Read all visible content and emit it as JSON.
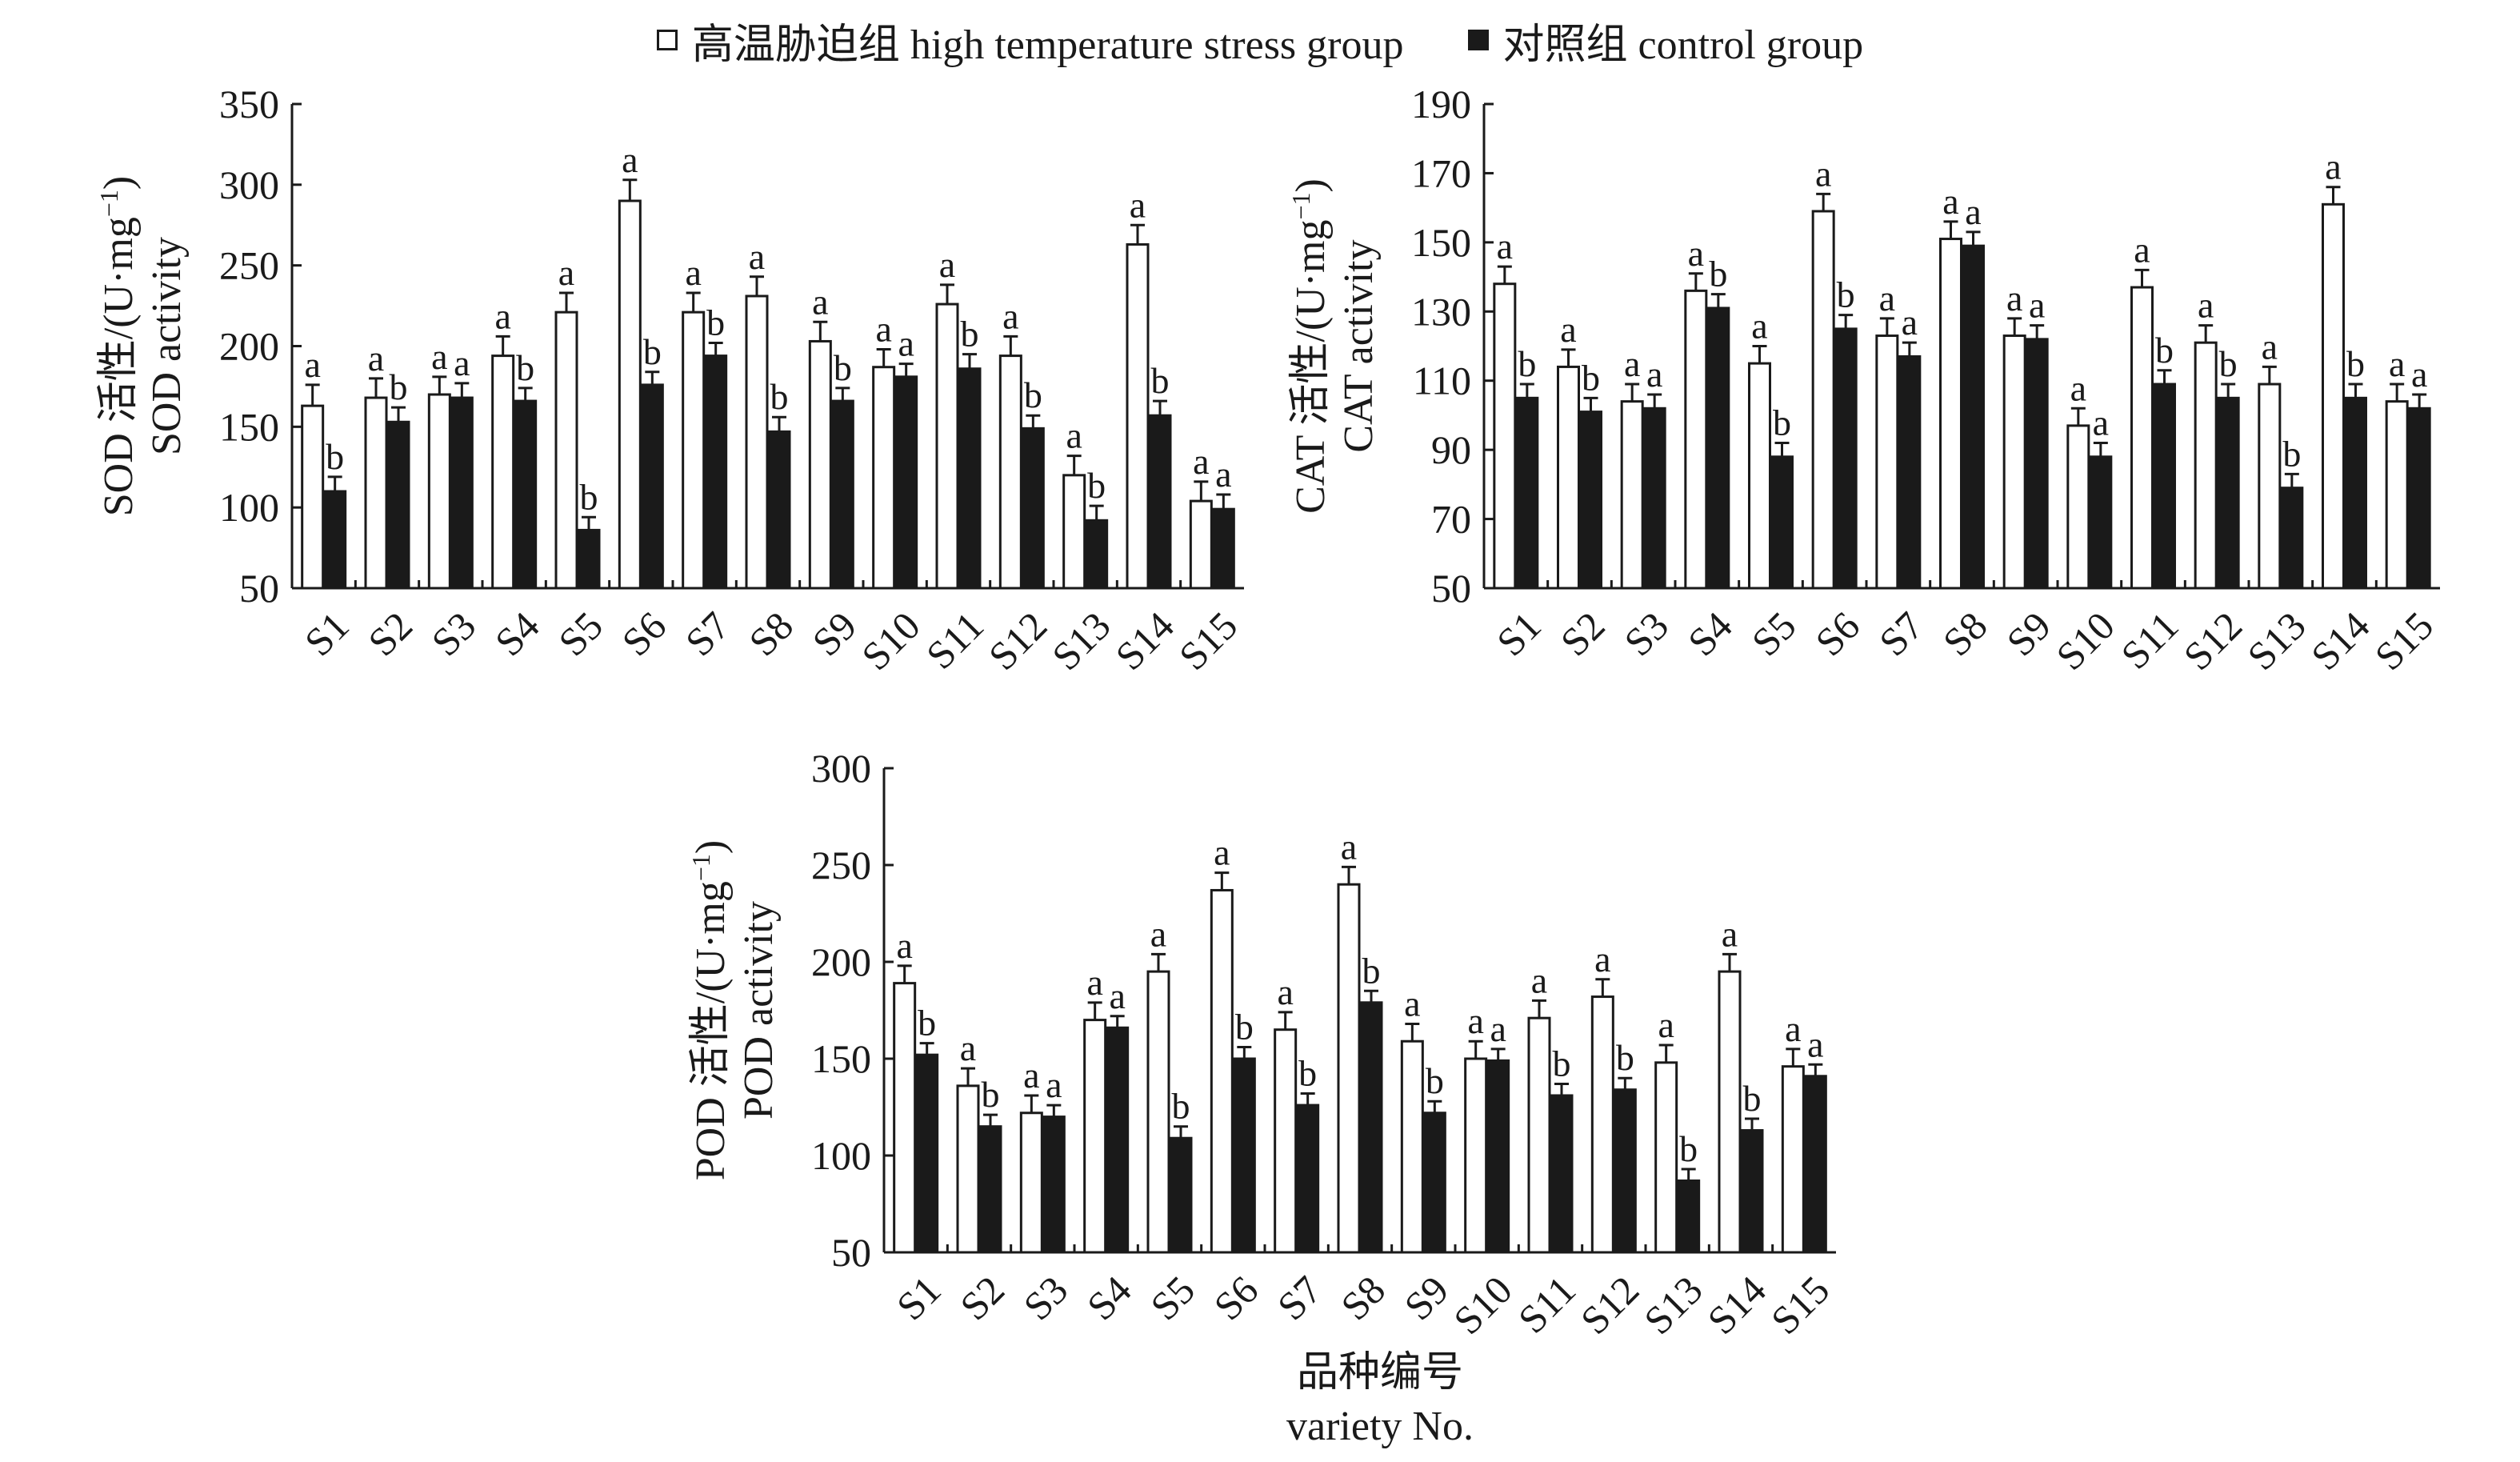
{
  "legend": {
    "stress_label": "高温胁迫组 high temperature stress group",
    "control_label": "对照组 control group"
  },
  "x_title": {
    "line1": "品种编号",
    "line2": "variety No."
  },
  "chart_data": [
    {
      "type": "bar",
      "id": "sod",
      "ylabel_line1": "SOD 活性/(U·mg",
      "ylabel_sup": "−1",
      "ylabel_close": ")",
      "ylabel_line2": "SOD activity",
      "ylim": [
        50,
        350
      ],
      "yticks": [
        50,
        100,
        150,
        200,
        250,
        300,
        350
      ],
      "categories": [
        "S1",
        "S2",
        "S3",
        "S4",
        "S5",
        "S6",
        "S7",
        "S8",
        "S9",
        "S10",
        "S11",
        "S12",
        "S13",
        "S14",
        "S15"
      ],
      "series": [
        {
          "name": "高温胁迫组 high temperature stress group",
          "values": [
            163,
            168,
            170,
            194,
            221,
            290,
            221,
            231,
            203,
            187,
            226,
            194,
            120,
            263,
            104
          ],
          "errors": [
            13,
            12,
            11,
            12,
            12,
            13,
            12,
            12,
            12,
            11,
            12,
            12,
            12,
            12,
            12
          ],
          "letters": [
            "a",
            "a",
            "a",
            "a",
            "a",
            "a",
            "a",
            "a",
            "a",
            "a",
            "a",
            "a",
            "a",
            "a",
            "a"
          ]
        },
        {
          "name": "对照组 control group",
          "values": [
            110,
            153,
            168,
            166,
            86,
            176,
            194,
            147,
            166,
            181,
            186,
            149,
            92,
            157,
            99
          ],
          "errors": [
            9,
            9,
            9,
            8,
            8,
            8,
            8,
            9,
            8,
            8,
            9,
            8,
            9,
            9,
            9
          ],
          "letters": [
            "b",
            "b",
            "a",
            "b",
            "b",
            "b",
            "b",
            "b",
            "b",
            "a",
            "b",
            "b",
            "b",
            "b",
            "a"
          ]
        }
      ]
    },
    {
      "type": "bar",
      "id": "cat",
      "ylabel_line1": "CAT 活性/(U·mg",
      "ylabel_sup": "−1",
      "ylabel_close": ")",
      "ylabel_line2": "CAT activity",
      "ylim": [
        50,
        190
      ],
      "yticks": [
        50,
        70,
        90,
        110,
        130,
        150,
        170,
        190
      ],
      "categories": [
        "S1",
        "S2",
        "S3",
        "S4",
        "S5",
        "S6",
        "S7",
        "S8",
        "S9",
        "S10",
        "S11",
        "S12",
        "S13",
        "S14",
        "S15"
      ],
      "series": [
        {
          "name": "高温胁迫组 high temperature stress group",
          "values": [
            138,
            114,
            104,
            136,
            115,
            159,
            123,
            151,
            123,
            97,
            137,
            121,
            109,
            161,
            104
          ],
          "errors": [
            5,
            5,
            5,
            5,
            5,
            5,
            5,
            5,
            5,
            5,
            5,
            5,
            5,
            5,
            5
          ],
          "letters": [
            "a",
            "a",
            "a",
            "a",
            "a",
            "a",
            "a",
            "a",
            "a",
            "a",
            "a",
            "a",
            "a",
            "a",
            "a"
          ]
        },
        {
          "name": "对照组 control group",
          "values": [
            105,
            101,
            102,
            131,
            88,
            125,
            117,
            149,
            122,
            88,
            109,
            105,
            79,
            105,
            102
          ],
          "errors": [
            4,
            4,
            4,
            4,
            4,
            4,
            4,
            4,
            4,
            4,
            4,
            4,
            4,
            4,
            4
          ],
          "letters": [
            "b",
            "b",
            "a",
            "b",
            "b",
            "b",
            "a",
            "a",
            "a",
            "a",
            "b",
            "b",
            "b",
            "b",
            "a"
          ]
        }
      ]
    },
    {
      "type": "bar",
      "id": "pod",
      "ylabel_line1": "POD 活性/(U·mg",
      "ylabel_sup": "−1",
      "ylabel_close": ")",
      "ylabel_line2": "POD activity",
      "ylim": [
        50,
        300
      ],
      "yticks": [
        50,
        100,
        150,
        200,
        250,
        300
      ],
      "categories": [
        "S1",
        "S2",
        "S3",
        "S4",
        "S5",
        "S6",
        "S7",
        "S8",
        "S9",
        "S10",
        "S11",
        "S12",
        "S13",
        "S14",
        "S15"
      ],
      "series": [
        {
          "name": "高温胁迫组 high temperature stress group",
          "values": [
            189,
            136,
            122,
            170,
            195,
            237,
            165,
            240,
            159,
            150,
            171,
            182,
            148,
            195,
            146
          ],
          "errors": [
            9,
            9,
            9,
            9,
            9,
            9,
            9,
            9,
            9,
            9,
            9,
            9,
            9,
            9,
            9
          ],
          "letters": [
            "a",
            "a",
            "a",
            "a",
            "a",
            "a",
            "a",
            "a",
            "a",
            "a",
            "a",
            "a",
            "a",
            "a",
            "a"
          ]
        },
        {
          "name": "对照组 control group",
          "values": [
            152,
            115,
            120,
            166,
            109,
            150,
            126,
            179,
            122,
            149,
            131,
            134,
            87,
            113,
            141
          ],
          "errors": [
            6,
            6,
            6,
            6,
            6,
            6,
            6,
            6,
            6,
            6,
            6,
            6,
            6,
            6,
            6
          ],
          "letters": [
            "b",
            "b",
            "a",
            "a",
            "b",
            "b",
            "b",
            "b",
            "b",
            "a",
            "b",
            "b",
            "b",
            "b",
            "a"
          ]
        }
      ]
    }
  ]
}
